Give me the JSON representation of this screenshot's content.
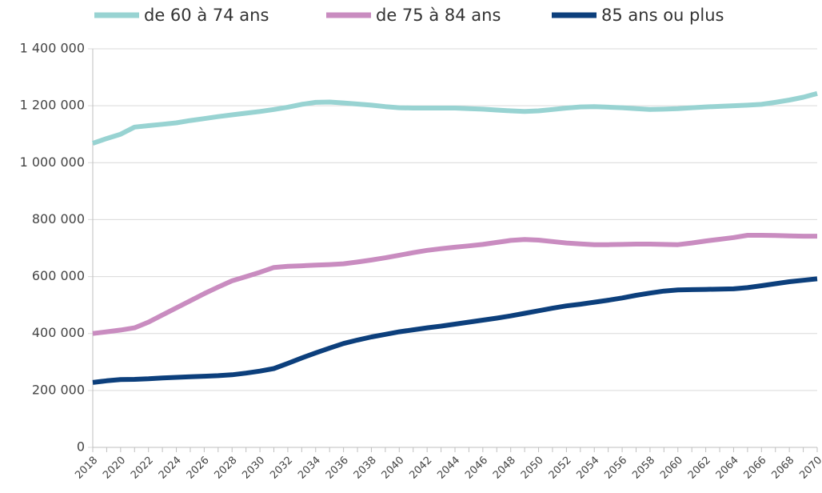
{
  "chart_data": {
    "type": "line",
    "x": [
      2018,
      2019,
      2020,
      2021,
      2022,
      2023,
      2024,
      2025,
      2026,
      2027,
      2028,
      2029,
      2030,
      2031,
      2032,
      2033,
      2034,
      2035,
      2036,
      2037,
      2038,
      2039,
      2040,
      2041,
      2042,
      2043,
      2044,
      2045,
      2046,
      2047,
      2048,
      2049,
      2050,
      2051,
      2052,
      2053,
      2054,
      2055,
      2056,
      2057,
      2058,
      2059,
      2060,
      2061,
      2062,
      2063,
      2064,
      2065,
      2066,
      2067,
      2068,
      2069,
      2070
    ],
    "xlim": [
      2018,
      2070
    ],
    "xticks": [
      2018,
      2020,
      2022,
      2024,
      2026,
      2028,
      2030,
      2032,
      2034,
      2036,
      2038,
      2040,
      2042,
      2044,
      2046,
      2048,
      2050,
      2052,
      2054,
      2056,
      2058,
      2060,
      2062,
      2064,
      2066,
      2068,
      2070
    ],
    "ylim": [
      0,
      1400000
    ],
    "yticks": [
      0,
      {
        "value": 200000,
        "label": "200 000"
      },
      {
        "value": 400000,
        "label": "400 000"
      },
      {
        "value": 600000,
        "label": "600 000"
      },
      {
        "value": 800000,
        "label": "800 000"
      },
      {
        "value": 1000000,
        "label": "1 000 000"
      },
      {
        "value": 1200000,
        "label": "1 200 000"
      },
      {
        "value": 1400000,
        "label": "1 400 000"
      }
    ],
    "grid": true,
    "legend": "top",
    "series": [
      {
        "name": "de 60 à 74 ans",
        "color": "#98d3d2",
        "values": [
          1068000,
          1085000,
          1100000,
          1125000,
          1130000,
          1135000,
          1140000,
          1148000,
          1155000,
          1162000,
          1168000,
          1174000,
          1180000,
          1187000,
          1195000,
          1205000,
          1212000,
          1213000,
          1210000,
          1206000,
          1202000,
          1197000,
          1193000,
          1192000,
          1192000,
          1192000,
          1192000,
          1190000,
          1188000,
          1185000,
          1182000,
          1180000,
          1182000,
          1187000,
          1192000,
          1196000,
          1197000,
          1195000,
          1193000,
          1190000,
          1187000,
          1188000,
          1190000,
          1193000,
          1196000,
          1198000,
          1200000,
          1202000,
          1205000,
          1212000,
          1220000,
          1230000,
          1243000
        ]
      },
      {
        "name": "de 75 à 84 ans",
        "color": "#c98cc0",
        "values": [
          400000,
          406000,
          412000,
          420000,
          440000,
          465000,
          490000,
          515000,
          540000,
          563000,
          585000,
          600000,
          615000,
          632000,
          636000,
          638000,
          640000,
          642000,
          645000,
          651000,
          658000,
          666000,
          675000,
          684000,
          692000,
          698000,
          703000,
          708000,
          713000,
          720000,
          727000,
          730000,
          728000,
          723000,
          718000,
          715000,
          712000,
          712000,
          713000,
          714000,
          714000,
          713000,
          712000,
          718000,
          725000,
          731000,
          737000,
          745000,
          745000,
          744000,
          743000,
          742000,
          742000
        ]
      },
      {
        "name": "85 ans ou plus",
        "color": "#0c3f7c",
        "values": [
          228000,
          234000,
          238000,
          239000,
          241000,
          244000,
          246000,
          248000,
          250000,
          252000,
          255000,
          261000,
          268000,
          277000,
          295000,
          314000,
          332000,
          349000,
          365000,
          377000,
          388000,
          397000,
          406000,
          413000,
          420000,
          426000,
          433000,
          440000,
          447000,
          454000,
          462000,
          471000,
          480000,
          489000,
          497000,
          503000,
          510000,
          517000,
          525000,
          534000,
          542000,
          549000,
          553000,
          554000,
          555000,
          556000,
          557000,
          561000,
          568000,
          575000,
          582000,
          587000,
          592000
        ]
      }
    ]
  }
}
